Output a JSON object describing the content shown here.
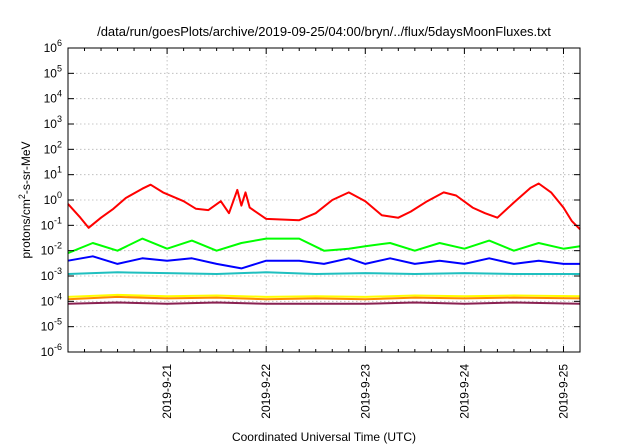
{
  "chart_data": {
    "type": "line",
    "title": "/data/run/goesPlots/archive/2019-09-25/04:00/bryn/../flux/5daysMoonFluxes.txt",
    "xlabel": "Coordinated Universal Time (UTC)",
    "ylabel": "protons/cm2-s-sr-MeV",
    "y_scale": "log",
    "ylim": [
      "1e-6",
      "1e6"
    ],
    "xlim": [
      "2019-09-20T00:00",
      "2019-09-25T04:00"
    ],
    "grid": true,
    "legend": "none",
    "x_tick_labels": [
      "2019-9-21",
      "2019-9-22",
      "2019-9-23",
      "2019-9-24",
      "2019-9-25"
    ],
    "y_tick_labels": [
      {
        "base": "10",
        "exp": "-6"
      },
      {
        "base": "10",
        "exp": "-5"
      },
      {
        "base": "10",
        "exp": "-4"
      },
      {
        "base": "10",
        "exp": "-3"
      },
      {
        "base": "10",
        "exp": "-2"
      },
      {
        "base": "10",
        "exp": "-1"
      },
      {
        "base": "10",
        "exp": "0"
      },
      {
        "base": "10",
        "exp": "1"
      },
      {
        "base": "10",
        "exp": "2"
      },
      {
        "base": "10",
        "exp": "3"
      },
      {
        "base": "10",
        "exp": "4"
      },
      {
        "base": "10",
        "exp": "5"
      },
      {
        "base": "10",
        "exp": "6"
      }
    ],
    "series": [
      {
        "color": "#ff0000",
        "values": [
          [
            "2019-09-20T00:00",
            "0.70"
          ],
          [
            "2019-09-20T03:00",
            "0.20"
          ],
          [
            "2019-09-20T05:00",
            "0.08"
          ],
          [
            "2019-09-20T08:00",
            "0.20"
          ],
          [
            "2019-09-20T11:00",
            "0.45"
          ],
          [
            "2019-09-20T14:00",
            "1.20"
          ],
          [
            "2019-09-20T18:00",
            "2.80"
          ],
          [
            "2019-09-20T20:00",
            "4.00"
          ],
          [
            "2019-09-20T23:00",
            "2.00"
          ],
          [
            "2019-09-21T04:00",
            "0.90"
          ],
          [
            "2019-09-21T07:00",
            "0.45"
          ],
          [
            "2019-09-21T10:00",
            "0.40"
          ],
          [
            "2019-09-21T13:00",
            "0.90"
          ],
          [
            "2019-09-21T15:00",
            "0.30"
          ],
          [
            "2019-09-21T17:00",
            "2.50"
          ],
          [
            "2019-09-21T18:00",
            "0.60"
          ],
          [
            "2019-09-21T19:00",
            "2.00"
          ],
          [
            "2019-09-21T20:00",
            "0.50"
          ],
          [
            "2019-09-22T00:00",
            "0.18"
          ],
          [
            "2019-09-22T08:00",
            "0.16"
          ],
          [
            "2019-09-22T12:00",
            "0.30"
          ],
          [
            "2019-09-22T16:00",
            "1.00"
          ],
          [
            "2019-09-22T20:00",
            "2.00"
          ],
          [
            "2019-09-23T00:00",
            "0.90"
          ],
          [
            "2019-09-23T04:00",
            "0.25"
          ],
          [
            "2019-09-23T08:00",
            "0.20"
          ],
          [
            "2019-09-23T11:00",
            "0.35"
          ],
          [
            "2019-09-23T15:00",
            "0.90"
          ],
          [
            "2019-09-23T19:00",
            "2.00"
          ],
          [
            "2019-09-23T22:00",
            "1.50"
          ],
          [
            "2019-09-24T02:00",
            "0.50"
          ],
          [
            "2019-09-24T05:00",
            "0.30"
          ],
          [
            "2019-09-24T08:00",
            "0.20"
          ],
          [
            "2019-09-24T12:00",
            "0.80"
          ],
          [
            "2019-09-24T16:00",
            "3.00"
          ],
          [
            "2019-09-24T18:00",
            "4.50"
          ],
          [
            "2019-09-24T21:00",
            "2.00"
          ],
          [
            "2019-09-25T00:00",
            "0.50"
          ],
          [
            "2019-09-25T02:00",
            "0.15"
          ],
          [
            "2019-09-25T04:00",
            "0.07"
          ]
        ]
      },
      {
        "color": "#00ff00",
        "values": [
          [
            "2019-09-20T00:00",
            "0.008"
          ],
          [
            "2019-09-20T06:00",
            "0.020"
          ],
          [
            "2019-09-20T12:00",
            "0.010"
          ],
          [
            "2019-09-20T18:00",
            "0.030"
          ],
          [
            "2019-09-21T00:00",
            "0.012"
          ],
          [
            "2019-09-21T06:00",
            "0.025"
          ],
          [
            "2019-09-21T12:00",
            "0.010"
          ],
          [
            "2019-09-21T18:00",
            "0.020"
          ],
          [
            "2019-09-22T00:00",
            "0.030"
          ],
          [
            "2019-09-22T08:00",
            "0.030"
          ],
          [
            "2019-09-22T14:00",
            "0.010"
          ],
          [
            "2019-09-22T20:00",
            "0.012"
          ],
          [
            "2019-09-23T00:00",
            "0.015"
          ],
          [
            "2019-09-23T06:00",
            "0.020"
          ],
          [
            "2019-09-23T12:00",
            "0.010"
          ],
          [
            "2019-09-23T18:00",
            "0.020"
          ],
          [
            "2019-09-24T00:00",
            "0.012"
          ],
          [
            "2019-09-24T06:00",
            "0.025"
          ],
          [
            "2019-09-24T12:00",
            "0.010"
          ],
          [
            "2019-09-24T18:00",
            "0.020"
          ],
          [
            "2019-09-25T00:00",
            "0.012"
          ],
          [
            "2019-09-25T04:00",
            "0.015"
          ]
        ]
      },
      {
        "color": "#0000ff",
        "values": [
          [
            "2019-09-20T00:00",
            "0.004"
          ],
          [
            "2019-09-20T06:00",
            "0.006"
          ],
          [
            "2019-09-20T12:00",
            "0.003"
          ],
          [
            "2019-09-20T18:00",
            "0.005"
          ],
          [
            "2019-09-21T00:00",
            "0.004"
          ],
          [
            "2019-09-21T06:00",
            "0.005"
          ],
          [
            "2019-09-21T12:00",
            "0.003"
          ],
          [
            "2019-09-21T18:00",
            "0.002"
          ],
          [
            "2019-09-22T00:00",
            "0.004"
          ],
          [
            "2019-09-22T08:00",
            "0.004"
          ],
          [
            "2019-09-22T14:00",
            "0.003"
          ],
          [
            "2019-09-22T20:00",
            "0.005"
          ],
          [
            "2019-09-23T00:00",
            "0.003"
          ],
          [
            "2019-09-23T06:00",
            "0.005"
          ],
          [
            "2019-09-23T12:00",
            "0.003"
          ],
          [
            "2019-09-23T18:00",
            "0.004"
          ],
          [
            "2019-09-24T00:00",
            "0.003"
          ],
          [
            "2019-09-24T06:00",
            "0.005"
          ],
          [
            "2019-09-24T12:00",
            "0.003"
          ],
          [
            "2019-09-24T18:00",
            "0.004"
          ],
          [
            "2019-09-25T00:00",
            "0.003"
          ],
          [
            "2019-09-25T04:00",
            "0.003"
          ]
        ]
      },
      {
        "color": "#1fbfbf",
        "values": [
          [
            "2019-09-20T00:00",
            "0.0012"
          ],
          [
            "2019-09-20T12:00",
            "0.0014"
          ],
          [
            "2019-09-21T00:00",
            "0.0013"
          ],
          [
            "2019-09-21T12:00",
            "0.0012"
          ],
          [
            "2019-09-22T00:00",
            "0.0014"
          ],
          [
            "2019-09-22T12:00",
            "0.0012"
          ],
          [
            "2019-09-23T00:00",
            "0.0013"
          ],
          [
            "2019-09-23T12:00",
            "0.0012"
          ],
          [
            "2019-09-24T00:00",
            "0.0013"
          ],
          [
            "2019-09-24T12:00",
            "0.0012"
          ],
          [
            "2019-09-25T04:00",
            "0.0012"
          ]
        ]
      },
      {
        "color": "#ffff00",
        "values": [
          [
            "2019-09-20T00:00",
            "0.00015"
          ],
          [
            "2019-09-20T12:00",
            "0.00018"
          ],
          [
            "2019-09-21T00:00",
            "0.00016"
          ],
          [
            "2019-09-21T12:00",
            "0.00017"
          ],
          [
            "2019-09-22T00:00",
            "0.00015"
          ],
          [
            "2019-09-22T12:00",
            "0.00016"
          ],
          [
            "2019-09-23T00:00",
            "0.00015"
          ],
          [
            "2019-09-23T12:00",
            "0.00017"
          ],
          [
            "2019-09-24T00:00",
            "0.00016"
          ],
          [
            "2019-09-24T12:00",
            "0.00017"
          ],
          [
            "2019-09-25T04:00",
            "0.00016"
          ]
        ]
      },
      {
        "color": "#ff8c00",
        "values": [
          [
            "2019-09-20T00:00",
            "0.00012"
          ],
          [
            "2019-09-20T12:00",
            "0.00015"
          ],
          [
            "2019-09-21T00:00",
            "0.00013"
          ],
          [
            "2019-09-21T12:00",
            "0.00014"
          ],
          [
            "2019-09-22T00:00",
            "0.00012"
          ],
          [
            "2019-09-22T12:00",
            "0.00013"
          ],
          [
            "2019-09-23T00:00",
            "0.00012"
          ],
          [
            "2019-09-23T12:00",
            "0.00014"
          ],
          [
            "2019-09-24T00:00",
            "0.00013"
          ],
          [
            "2019-09-24T12:00",
            "0.00014"
          ],
          [
            "2019-09-25T04:00",
            "0.00013"
          ]
        ]
      },
      {
        "color": "#8b2252",
        "values": [
          [
            "2019-09-20T00:00",
            "0.00008"
          ],
          [
            "2019-09-20T12:00",
            "0.00009"
          ],
          [
            "2019-09-21T00:00",
            "0.00008"
          ],
          [
            "2019-09-21T12:00",
            "0.00009"
          ],
          [
            "2019-09-22T00:00",
            "0.00008"
          ],
          [
            "2019-09-22T12:00",
            "0.00008"
          ],
          [
            "2019-09-23T00:00",
            "0.00008"
          ],
          [
            "2019-09-23T12:00",
            "0.00009"
          ],
          [
            "2019-09-24T00:00",
            "0.00008"
          ],
          [
            "2019-09-24T12:00",
            "0.00009"
          ],
          [
            "2019-09-25T04:00",
            "0.00008"
          ]
        ]
      }
    ]
  }
}
